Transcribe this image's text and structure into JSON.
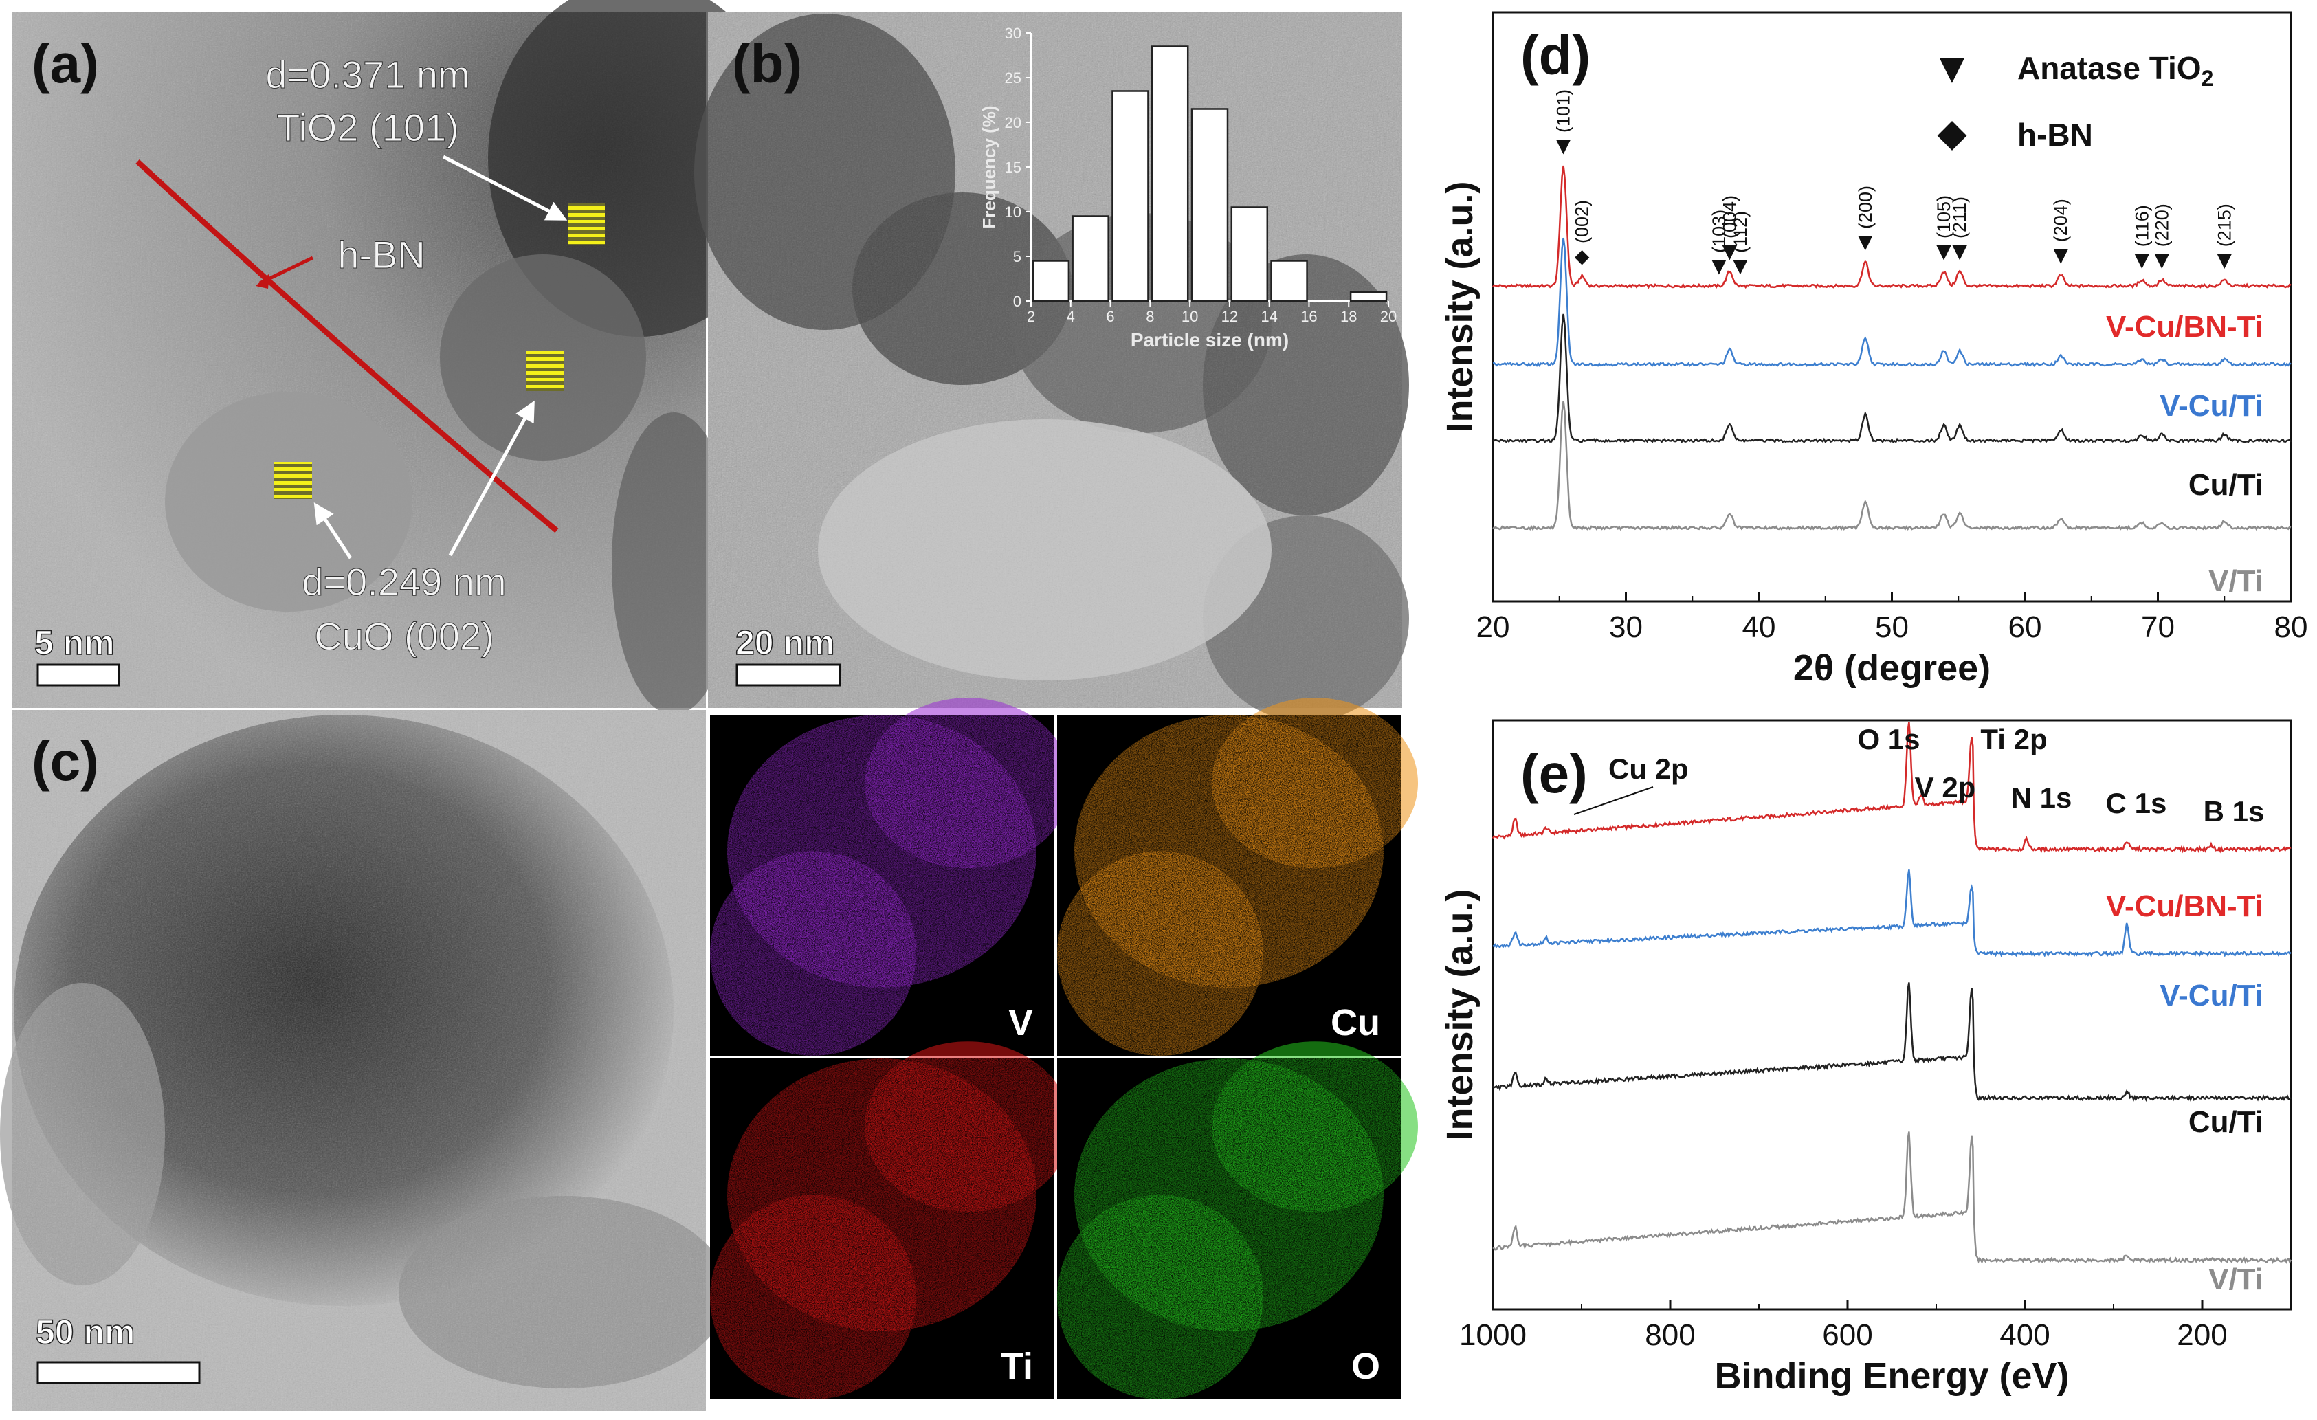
{
  "panels": {
    "a": {
      "label": "(a)",
      "scale_bar": "5 nm",
      "annotations": {
        "tio2_d": "d=0.371 nm",
        "tio2_plane": "TiO2 (101)",
        "hbn": "h-BN",
        "cuo_d": "d=0.249 nm",
        "cuo_plane": "CuO (002)"
      }
    },
    "b": {
      "label": "(b)",
      "scale_bar": "20 nm"
    },
    "c": {
      "label": "(c)",
      "scale_bar": "50 nm"
    },
    "eds_maps": [
      {
        "element": "V",
        "color": "#9b2cd6"
      },
      {
        "element": "Cu",
        "color": "#ee9418"
      },
      {
        "element": "Ti",
        "color": "#d81515"
      },
      {
        "element": "O",
        "color": "#25c51e"
      }
    ]
  },
  "chart_data": [
    {
      "id": "b-inset",
      "type": "bar",
      "xlabel": "Particle size (nm)",
      "ylabel": "Frequency (%)",
      "x_ticks": [
        "2",
        "4",
        "6",
        "8",
        "10",
        "12",
        "14",
        "16",
        "18",
        "20"
      ],
      "y_ticks": [
        "0",
        "5",
        "10",
        "15",
        "20",
        "25",
        "30"
      ],
      "xlim": [
        2,
        20
      ],
      "ylim": [
        0,
        30
      ],
      "categories": [
        "3",
        "5",
        "7",
        "9",
        "11",
        "13",
        "15",
        "19"
      ],
      "bins": [
        3,
        5,
        7,
        9,
        11,
        13,
        15,
        19
      ],
      "values": [
        4.5,
        9.5,
        23.5,
        28.5,
        21.5,
        10.5,
        4.5,
        1
      ]
    },
    {
      "id": "d",
      "label": "(d)",
      "type": "line",
      "xlabel": "2θ (degree)",
      "ylabel": "Intensity (a.u.)",
      "xlim": [
        20,
        80
      ],
      "x_ticks": [
        "20",
        "30",
        "40",
        "50",
        "60",
        "70",
        "80"
      ],
      "legend": [
        {
          "symbol": "▼",
          "label": "Anatase TiO",
          "sub": "2"
        },
        {
          "symbol": "◆",
          "label": "h-BN"
        }
      ],
      "peak_labels": [
        {
          "label": "(101)",
          "x": 25.3,
          "marker": "▼"
        },
        {
          "label": "(002)",
          "x": 26.7,
          "marker": "◆"
        },
        {
          "label": "(103)",
          "x": 37.0,
          "marker": "▼"
        },
        {
          "label": "(004)",
          "x": 37.8,
          "marker": "▼"
        },
        {
          "label": "(112)",
          "x": 38.6,
          "marker": "▼"
        },
        {
          "label": "(200)",
          "x": 48.0,
          "marker": "▼"
        },
        {
          "label": "(105)",
          "x": 53.9,
          "marker": "▼"
        },
        {
          "label": "(211)",
          "x": 55.1,
          "marker": "▼"
        },
        {
          "label": "(204)",
          "x": 62.7,
          "marker": "▼"
        },
        {
          "label": "(116)",
          "x": 68.8,
          "marker": "▼"
        },
        {
          "label": "(220)",
          "x": 70.3,
          "marker": "▼"
        },
        {
          "label": "(215)",
          "x": 75.0,
          "marker": "▼"
        }
      ],
      "series": [
        {
          "name": "V-Cu/BN-Ti",
          "color": "#d42a2a",
          "label_color": "#e12a2a",
          "peaks": [
            [
              25.3,
              1.0
            ],
            [
              26.7,
              0.08
            ],
            [
              37.8,
              0.12
            ],
            [
              48.0,
              0.2
            ],
            [
              53.9,
              0.12
            ],
            [
              55.1,
              0.12
            ],
            [
              62.7,
              0.09
            ],
            [
              68.8,
              0.05
            ],
            [
              70.3,
              0.05
            ],
            [
              75.0,
              0.05
            ]
          ]
        },
        {
          "name": "V-Cu/Ti",
          "color": "#3d7fcf",
          "label_color": "#3a78d0",
          "peaks": [
            [
              25.3,
              1.05
            ],
            [
              37.8,
              0.12
            ],
            [
              48.0,
              0.21
            ],
            [
              53.9,
              0.11
            ],
            [
              55.1,
              0.11
            ],
            [
              62.7,
              0.07
            ],
            [
              68.8,
              0.04
            ],
            [
              70.3,
              0.04
            ],
            [
              75.0,
              0.04
            ]
          ]
        },
        {
          "name": "Cu/Ti",
          "color": "#222222",
          "label_color": "#111111",
          "peaks": [
            [
              25.3,
              1.05
            ],
            [
              37.8,
              0.14
            ],
            [
              48.0,
              0.22
            ],
            [
              53.9,
              0.13
            ],
            [
              55.1,
              0.13
            ],
            [
              62.7,
              0.09
            ],
            [
              68.8,
              0.05
            ],
            [
              70.3,
              0.05
            ],
            [
              75.0,
              0.05
            ]
          ]
        },
        {
          "name": "V/Ti",
          "color": "#8c8c8c",
          "label_color": "#8c8c8c",
          "peaks": [
            [
              25.3,
              1.05
            ],
            [
              37.8,
              0.12
            ],
            [
              48.0,
              0.22
            ],
            [
              53.9,
              0.12
            ],
            [
              55.1,
              0.12
            ],
            [
              62.7,
              0.08
            ],
            [
              68.8,
              0.04
            ],
            [
              70.3,
              0.04
            ],
            [
              75.0,
              0.05
            ]
          ]
        }
      ]
    },
    {
      "id": "e",
      "label": "(e)",
      "type": "line",
      "xlabel": "Binding Energy (eV)",
      "ylabel": "Intensity (a.u.)",
      "xlim": [
        1000,
        100
      ],
      "x_ticks": [
        "1000",
        "800",
        "600",
        "400",
        "200"
      ],
      "peak_labels": [
        "Cu 2p",
        "O 1s",
        "V 2p",
        "Ti 2p",
        "N 1s",
        "C 1s",
        "B 1s"
      ],
      "series": [
        {
          "name": "V-Cu/BN-Ti",
          "color": "#d42a2a",
          "label_color": "#e12a2a",
          "peaks": [
            [
              975,
              0.25
            ],
            [
              940,
              0.08
            ],
            [
              531,
              1.3
            ],
            [
              517,
              0.15
            ],
            [
              460,
              1.0
            ],
            [
              398,
              0.15
            ],
            [
              285,
              0.12
            ],
            [
              190,
              0.06
            ]
          ]
        },
        {
          "name": "V-Cu/Ti",
          "color": "#3d7fcf",
          "label_color": "#3a78d0",
          "peaks": [
            [
              975,
              0.2
            ],
            [
              940,
              0.08
            ],
            [
              531,
              0.85
            ],
            [
              460,
              0.55
            ],
            [
              285,
              0.45
            ]
          ]
        },
        {
          "name": "Cu/Ti",
          "color": "#222222",
          "label_color": "#111111",
          "peaks": [
            [
              975,
              0.2
            ],
            [
              940,
              0.08
            ],
            [
              531,
              1.2
            ],
            [
              460,
              1.05
            ],
            [
              285,
              0.1
            ]
          ]
        },
        {
          "name": "V/Ti",
          "color": "#8c8c8c",
          "label_color": "#8c8c8c",
          "peaks": [
            [
              975,
              0.3
            ],
            [
              531,
              1.3
            ],
            [
              460,
              1.15
            ],
            [
              285,
              0.08
            ],
            [
              190,
              0.03
            ]
          ]
        }
      ]
    }
  ]
}
